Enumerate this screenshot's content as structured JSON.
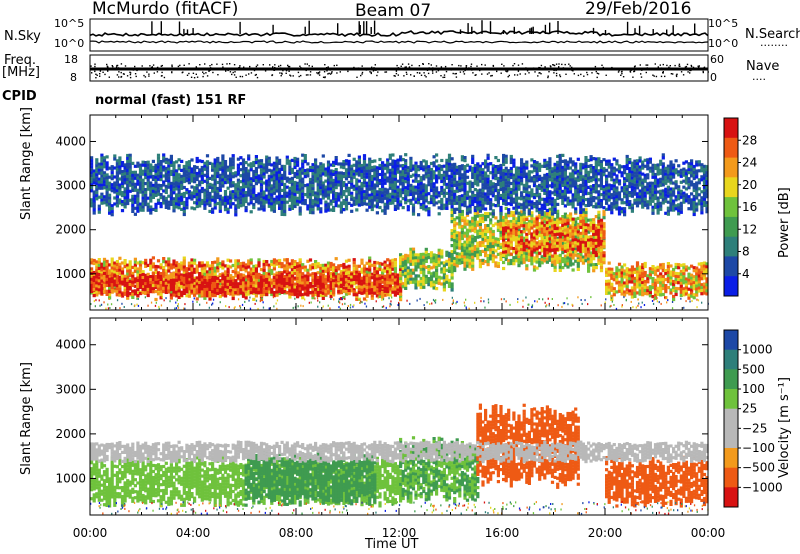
{
  "header": {
    "station": "McMurdo (fitACF)",
    "beam": "Beam 07",
    "date": "29/Feb/2016"
  },
  "strip": {
    "nsky_label": "N.Sky",
    "nsearch_label": "N.Search",
    "nsearch_dots": "........",
    "nsky_ticks": [
      "10^5",
      "10^0"
    ],
    "nsearch_ticks": [
      "10^5",
      "10^0"
    ],
    "freq_label": "Freq.",
    "freq_unit": "[MHz]",
    "freq_ticks": [
      "18",
      "8"
    ],
    "nave_label": "Nave",
    "nave_dots": "....",
    "nave_ticks": [
      "60",
      "0"
    ],
    "cpid_label": "CPID",
    "cpid_value": "normal (fast) 151 RF"
  },
  "colors": {
    "power": [
      "#0a1ee6",
      "#1d48a6",
      "#2e7f7a",
      "#3f9b50",
      "#6fc23c",
      "#e8d61e",
      "#f39a1c",
      "#ee5a14",
      "#d81212"
    ],
    "velocity": [
      "#d81212",
      "#ee5a14",
      "#f39a1c",
      "#b8b8b8",
      "#b8b8b8",
      "#6fc23c",
      "#3f9b50",
      "#2e7f7a",
      "#1d48a6"
    ]
  },
  "chart_data": [
    {
      "type": "heatmap",
      "name": "Power",
      "ylabel": "Slant Range [km]",
      "ylim": [
        180,
        4600
      ],
      "yticks": [
        1000,
        2000,
        3000,
        4000
      ],
      "xlim": [
        0,
        24
      ],
      "colorbar": {
        "label": "Power [dB]",
        "ticks": [
          "28",
          "24",
          "20",
          "16",
          "12",
          "8",
          "4"
        ],
        "range": [
          0,
          32
        ]
      },
      "regions": [
        {
          "x": [
            0,
            12
          ],
          "y": [
            500,
            1300
          ],
          "value": 24
        },
        {
          "x": [
            0,
            12
          ],
          "y": [
            580,
            1000
          ],
          "value": 30
        },
        {
          "x": [
            12,
            14
          ],
          "y": [
            700,
            1500
          ],
          "value": 16
        },
        {
          "x": [
            14,
            20
          ],
          "y": [
            1200,
            2400
          ],
          "value": 18
        },
        {
          "x": [
            16,
            20
          ],
          "y": [
            1500,
            2200
          ],
          "value": 26
        },
        {
          "x": [
            20,
            24
          ],
          "y": [
            500,
            1200
          ],
          "value": 22
        },
        {
          "x": [
            0,
            24
          ],
          "y": [
            2500,
            3600
          ],
          "value": 6
        }
      ]
    },
    {
      "type": "heatmap",
      "name": "Velocity",
      "ylabel": "Slant Range [km]",
      "ylim": [
        180,
        4600
      ],
      "yticks": [
        1000,
        2000,
        3000,
        4000
      ],
      "xlim": [
        0,
        24
      ],
      "xticks": [
        "00:00",
        "04:00",
        "08:00",
        "12:00",
        "16:00",
        "20:00",
        "00:00"
      ],
      "xlabel": "Time UT",
      "colorbar": {
        "label": "Velocity [m s⁻¹]",
        "ticks": [
          "1000",
          "500",
          "100",
          "25",
          "−25",
          "−100",
          "−500",
          "−1000"
        ]
      },
      "regions": [
        {
          "x": [
            0,
            12
          ],
          "y": [
            500,
            1400
          ],
          "value": 50
        },
        {
          "x": [
            6,
            11
          ],
          "y": [
            500,
            1500
          ],
          "value": 200
        },
        {
          "x": [
            12,
            15
          ],
          "y": [
            600,
            1800
          ],
          "value": 100
        },
        {
          "x": [
            15,
            19
          ],
          "y": [
            1000,
            2500
          ],
          "value": -300
        },
        {
          "x": [
            20,
            24
          ],
          "y": [
            500,
            1400
          ],
          "value": -300
        },
        {
          "x": [
            0,
            24
          ],
          "y": [
            1400,
            1800
          ],
          "value": 0
        }
      ]
    }
  ]
}
